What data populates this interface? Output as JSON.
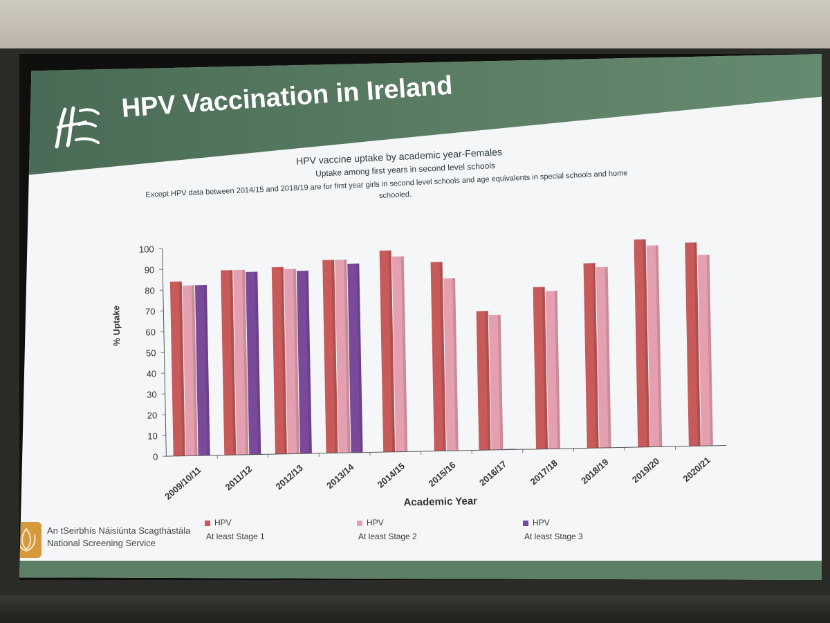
{
  "slide": {
    "title": "HPV Vaccination in Ireland",
    "logo_icon": "hse-logo-icon",
    "footer_org_irish": "An tSeirbhís Náisiúnta Scagthástála",
    "footer_org_english": "National Screening Service",
    "footer_logo_icon": "lotus-logo-icon"
  },
  "colors": {
    "header_green": "#5d7f66",
    "stage1": "#c85a5a",
    "stage2": "#e4a0b0",
    "stage3": "#7a4a9a"
  },
  "chart_data": {
    "type": "bar",
    "title": "HPV vaccine uptake by academic year-Females",
    "subtitle": "Uptake among first years in second level schools",
    "note_line1": "Except HPV data between 2014/15 and 2018/19 are  for first year girls in second level schools and age equivalents in special schools and home",
    "note_line2": "schooled.",
    "xlabel": "Academic Year",
    "ylabel": "% Uptake",
    "ylim": [
      0,
      100
    ],
    "yticks": [
      0,
      10,
      20,
      30,
      40,
      50,
      60,
      70,
      80,
      90,
      100
    ],
    "grid": false,
    "legend_position": "bottom",
    "categories": [
      "2009/10/11",
      "2011/12",
      "2012/13",
      "2013/14",
      "2014/15",
      "2015/16",
      "2016/17",
      "2017/18",
      "2018/19",
      "2019/20",
      "2020/21"
    ],
    "series": [
      {
        "name": "HPV",
        "sublabel": "At least Stage 1",
        "values": [
          84,
          89,
          90,
          93,
          97,
          91,
          67,
          78,
          89,
          100,
          98
        ]
      },
      {
        "name": "HPV",
        "sublabel": "At least Stage 2",
        "values": [
          82,
          89,
          89,
          93,
          94,
          83,
          65,
          76,
          87,
          97,
          92
        ]
      },
      {
        "name": "HPV",
        "sublabel": "At least Stage 3",
        "values": [
          82,
          88,
          88,
          91,
          null,
          null,
          0,
          null,
          null,
          null,
          null
        ]
      }
    ]
  }
}
